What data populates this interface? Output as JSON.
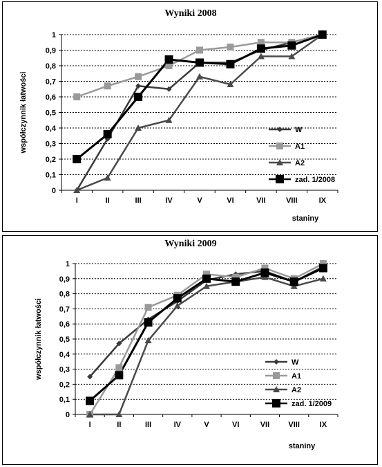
{
  "chart_data": [
    {
      "type": "line",
      "title": "Wyniki 2008",
      "ylabel": "współczynnik łatwości",
      "xlabel": "staniny",
      "categories": [
        "I",
        "II",
        "III",
        "IV",
        "V",
        "VI",
        "VII",
        "VIII",
        "IX"
      ],
      "ylim": [
        0,
        1
      ],
      "yticks": [
        "0",
        "0,1",
        "0,2",
        "0,3",
        "0,4",
        "0,5",
        "0,6",
        "0,7",
        "0,8",
        "0,9",
        "1"
      ],
      "grid": true,
      "legend_position": "right",
      "series": [
        {
          "name": "W",
          "color": "#3a3a3a",
          "marker": "diamond",
          "values": [
            0,
            0.33,
            0.67,
            0.65,
            0.82,
            0.82,
            0.9,
            0.95,
            1.0
          ]
        },
        {
          "name": "A1",
          "color": "#9a9a9a",
          "marker": "square",
          "values": [
            0.6,
            0.67,
            0.73,
            0.8,
            0.9,
            0.92,
            0.95,
            0.95,
            1.0
          ]
        },
        {
          "name": "A2",
          "color": "#4a4a4a",
          "marker": "triangle",
          "values": [
            0,
            0.08,
            0.4,
            0.45,
            0.73,
            0.68,
            0.86,
            0.86,
            1.0
          ]
        },
        {
          "name": "zad. 1/2008",
          "color": "#000000",
          "marker": "bigsquare",
          "values": [
            0.2,
            0.36,
            0.6,
            0.84,
            0.82,
            0.81,
            0.91,
            0.93,
            1.0
          ]
        }
      ]
    },
    {
      "type": "line",
      "title": "Wyniki 2009",
      "ylabel": "współczynnik łatwości",
      "xlabel": "staniny",
      "categories": [
        "I",
        "II",
        "III",
        "IV",
        "V",
        "VI",
        "VII",
        "VIII",
        "IX"
      ],
      "ylim": [
        0,
        1
      ],
      "yticks": [
        "0",
        "0,1",
        "0,2",
        "0,3",
        "0,4",
        "0,5",
        "0,6",
        "0,7",
        "0,8",
        "0,9",
        "1"
      ],
      "grid": true,
      "legend_position": "right",
      "series": [
        {
          "name": "W",
          "color": "#3a3a3a",
          "marker": "diamond",
          "values": [
            0.25,
            0.47,
            0.63,
            0.75,
            0.89,
            0.93,
            0.95,
            0.88,
            0.98
          ]
        },
        {
          "name": "A1",
          "color": "#9a9a9a",
          "marker": "square",
          "values": [
            0.0,
            0.31,
            0.71,
            0.79,
            0.93,
            0.91,
            0.97,
            0.9,
            1.0
          ]
        },
        {
          "name": "A2",
          "color": "#4a4a4a",
          "marker": "triangle",
          "values": [
            0,
            0,
            0.49,
            0.72,
            0.85,
            0.88,
            0.91,
            0.85,
            0.9
          ]
        },
        {
          "name": "zad. 1/2009",
          "color": "#000000",
          "marker": "bigsquare",
          "values": [
            0.09,
            0.26,
            0.61,
            0.77,
            0.9,
            0.88,
            0.94,
            0.88,
            0.97
          ]
        }
      ]
    }
  ]
}
